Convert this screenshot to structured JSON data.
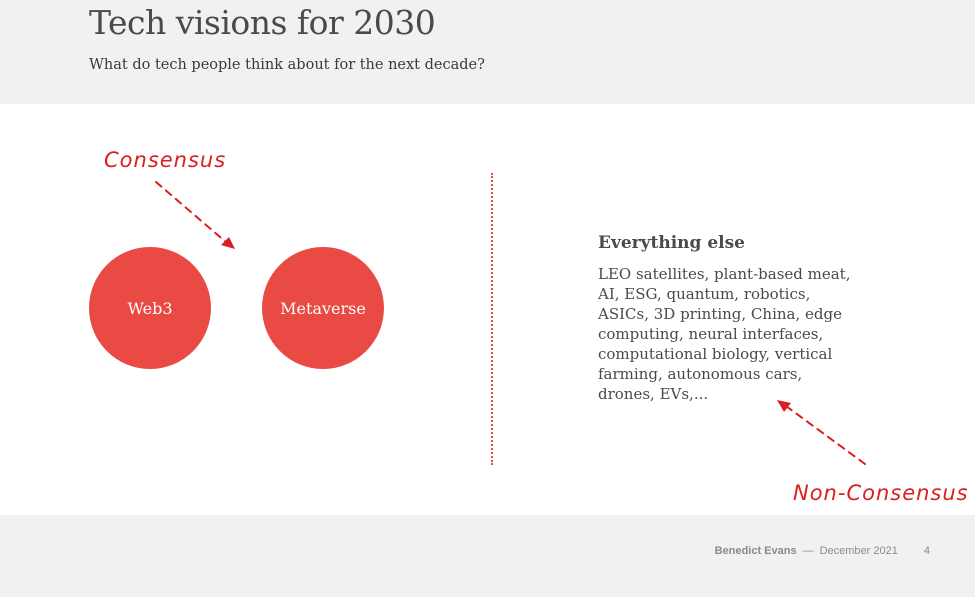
{
  "header": {
    "title": "Tech visions for 2030",
    "subtitle": "What do tech people think about for the next decade?"
  },
  "consensus": {
    "annotation": "Consensus",
    "items": [
      "Web3",
      "Metaverse"
    ]
  },
  "non_consensus": {
    "heading": "Everything else",
    "body": "LEO satellites, plant-based meat, AI, ESG, quantum, robotics, ASICs, 3D printing, China, edge computing, neural interfaces, computational biology, vertical farming, autonomous cars, drones, EVs,...",
    "annotation": "Non-Consensus"
  },
  "footer": {
    "author": "Benedict Evans",
    "separator": "—",
    "date": "December 2021",
    "page": "4"
  },
  "colors": {
    "accent": "#e94a43",
    "annotation": "#d91f1f",
    "header_bg": "#f1f1f1"
  }
}
